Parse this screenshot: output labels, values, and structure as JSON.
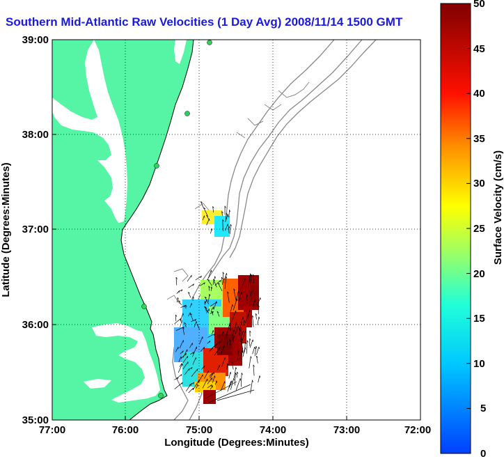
{
  "title": "Southern Mid-Atlantic Raw Velocities (1 Day Avg) 2008/11/14 1500 GMT",
  "map": {
    "xlabel": "Longitude (Degrees:Minutes)",
    "ylabel": "Latitude (Degrees:Minutes)",
    "x_ticks": [
      "77:00",
      "76:00",
      "75:00",
      "74:00",
      "73:00",
      "72:00"
    ],
    "y_ticks": [
      "39:00",
      "38:00",
      "37:00",
      "36:00",
      "35:00"
    ],
    "lon_range": [
      -77,
      -72
    ],
    "lat_range": [
      35,
      39
    ],
    "land_color": "#55f5a5",
    "water_color": "#ffffff",
    "grid": "dotted"
  },
  "colorbar": {
    "label": "Surface Velocity (cm/s)",
    "ticks": [
      "50",
      "45",
      "40",
      "35",
      "30",
      "25",
      "20",
      "15",
      "10",
      "5",
      "0"
    ],
    "range": [
      0,
      50
    ],
    "colormap": "jet"
  }
}
